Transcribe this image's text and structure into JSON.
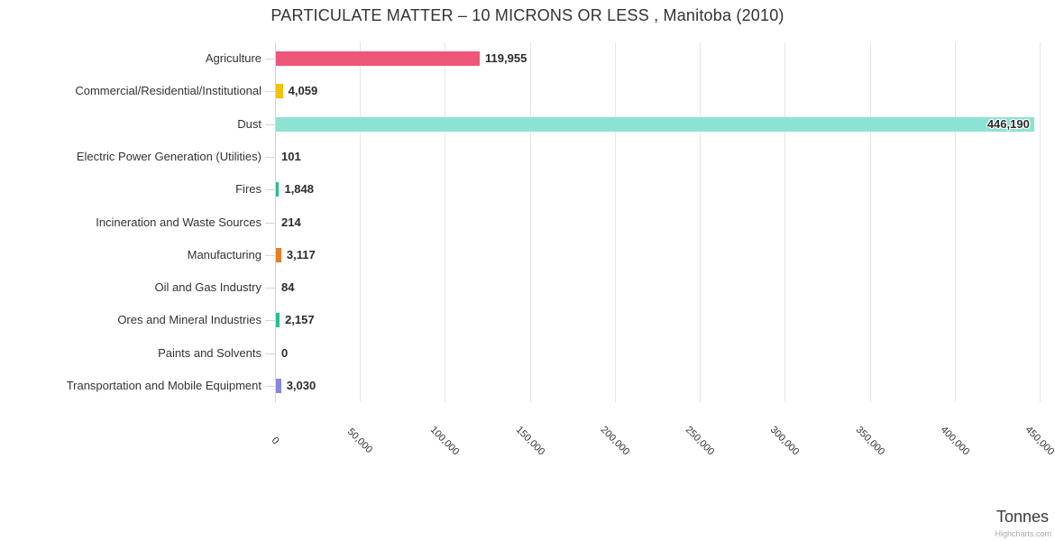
{
  "chart_data": {
    "type": "bar",
    "title": "PARTICULATE MATTER – 10 MICRONS OR LESS , Manitoba (2010)",
    "orientation": "horizontal",
    "categories": [
      "Agriculture",
      "Commercial/Residential/Institutional",
      "Dust",
      "Electric Power Generation (Utilities)",
      "Fires",
      "Incineration and Waste Sources",
      "Manufacturing",
      "Oil and Gas Industry",
      "Ores and Mineral Industries",
      "Paints and Solvents",
      "Transportation and Mobile Equipment"
    ],
    "values": [
      119955,
      4059,
      446190,
      101,
      1848,
      214,
      3117,
      84,
      2157,
      0,
      3030
    ],
    "value_labels": [
      "119,955",
      "4,059",
      "446,190",
      "101",
      "1,848",
      "214",
      "3,117",
      "84",
      "2,157",
      "0",
      "3,030"
    ],
    "colors": [
      "#ee5679",
      "#f0c30a",
      "#8ce3d4",
      "#bdbdbd",
      "#27bd94",
      "#bdbdbd",
      "#e87e23",
      "#bdbdbd",
      "#27bd94",
      "#bdbdbd",
      "#8688df"
    ],
    "xlabel": "Tonnes",
    "ylabel": "",
    "xlim": [
      0,
      450000
    ],
    "xticks": [
      0,
      50000,
      100000,
      150000,
      200000,
      250000,
      300000,
      350000,
      400000,
      450000
    ],
    "xtick_labels": [
      "0",
      "50,000",
      "100,000",
      "150,000",
      "200,000",
      "250,000",
      "300,000",
      "350,000",
      "400,000",
      "450,000"
    ],
    "grid": true,
    "grid_color": "#e6e6e6",
    "axis_line_color": "#ccd6eb",
    "label_color": "#333333",
    "legend": false
  },
  "credits": {
    "text": "Highcharts.com"
  }
}
